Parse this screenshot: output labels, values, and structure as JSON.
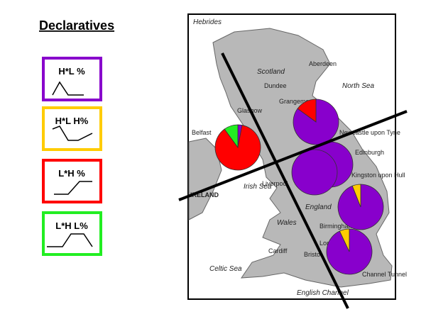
{
  "title": "Declaratives",
  "legend": [
    {
      "label": "H*L   %",
      "color": "#8800cc"
    },
    {
      "label": "H*L H%",
      "color": "#ffcc00"
    },
    {
      "label": "L*H   %",
      "color": "#ff0000"
    },
    {
      "label": "L*H L%",
      "color": "#22ee22"
    }
  ],
  "map": {
    "labels": [
      "Hebrides",
      "Scotland",
      "Aberdeen",
      "Dundee",
      "North Sea",
      "Grangemouth",
      "Glasgow",
      "Edinburgh",
      "Newcastle upon Tyne",
      "Belfast",
      "Irish Sea",
      "Liverpool",
      "Kingston upon Hull",
      "IRELAND",
      "England",
      "Wales",
      "Birmingham",
      "Cardiff",
      "Bristol",
      "London",
      "Celtic Sea",
      "Channel Tunnel",
      "English Channel"
    ]
  },
  "pies": [
    {
      "values": [
        3,
        0,
        87,
        10
      ]
    },
    {
      "values": [
        85,
        0,
        15,
        0
      ]
    },
    {
      "values": [
        100,
        0,
        0,
        0
      ]
    },
    {
      "values": [
        100,
        0,
        0,
        0
      ]
    },
    {
      "values": [
        94,
        6,
        0,
        0
      ]
    },
    {
      "values": [
        93,
        7,
        0,
        0
      ]
    }
  ]
}
